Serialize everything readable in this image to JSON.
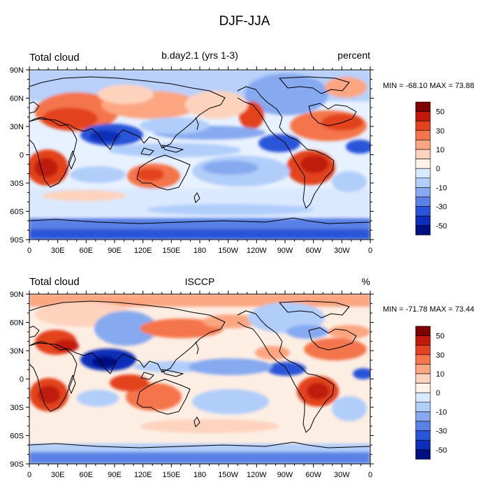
{
  "figure": {
    "title": "DJF-JJA"
  },
  "panels": [
    {
      "left_label": "Total cloud",
      "center_label": "b.day2.1 (yrs 1-3)",
      "right_label": "percent",
      "minmax": "MIN = -68.10 MAX =  73.88"
    },
    {
      "left_label": "Total cloud",
      "center_label": "ISCCP",
      "right_label": "%",
      "minmax": "MIN = -71.78 MAX =  73.44"
    }
  ],
  "axes": {
    "lon_ticks": [
      "0",
      "30E",
      "60E",
      "90E",
      "120E",
      "150E",
      "180",
      "150W",
      "120W",
      "90W",
      "60W",
      "30W",
      "0"
    ],
    "lat_ticks": [
      "90N",
      "60N",
      "30N",
      "0",
      "30S",
      "60S",
      "90S"
    ]
  },
  "colorbar": {
    "labels": [
      "50",
      "30",
      "10",
      "0",
      "-10",
      "-30",
      "-50"
    ],
    "colors": [
      "#7f0000",
      "#bf1a0c",
      "#e2421f",
      "#f4744c",
      "#fba681",
      "#fdd3bd",
      "#fff2ea",
      "#d9eaff",
      "#b1cdfa",
      "#86a9f0",
      "#5a82e6",
      "#2b55d8",
      "#0d2eb8",
      "#00107f"
    ]
  },
  "colors": {
    "neutral_field": "#fdeee4",
    "coastline": "#000000"
  }
}
